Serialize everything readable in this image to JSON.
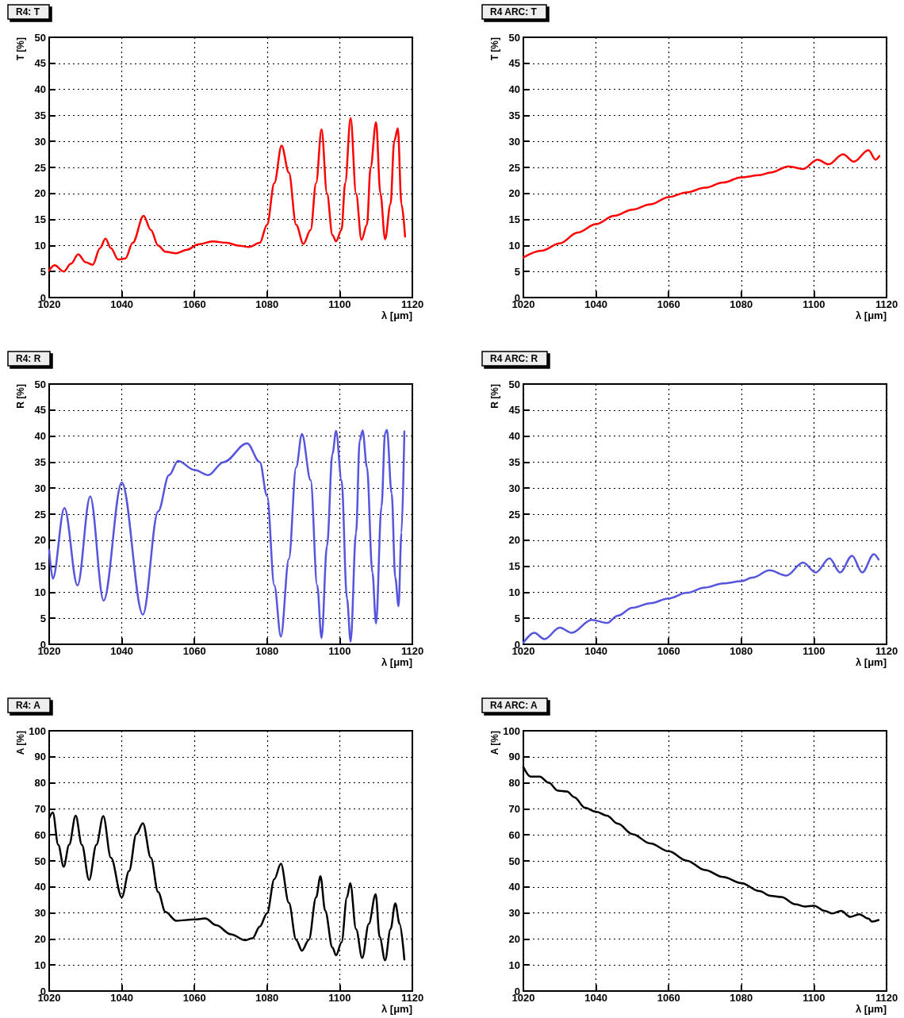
{
  "chart_data": [
    {
      "type": "line",
      "title": "R4: T",
      "xlabel": "λ [μm]",
      "ylabel": "T [%]",
      "xlim": [
        1020,
        1120
      ],
      "xticks": [
        1020,
        1040,
        1060,
        1080,
        1100,
        1120
      ],
      "ylim": [
        0,
        50
      ],
      "yticks": [
        0,
        5,
        10,
        15,
        20,
        25,
        30,
        35,
        40,
        45,
        50
      ],
      "grid": true,
      "line_style": "solid",
      "series": [
        {
          "color": "#ff0000",
          "x": [
            1020,
            1021.5,
            1024,
            1026,
            1028,
            1030,
            1032,
            1034,
            1035.5,
            1037,
            1039,
            1041,
            1043,
            1046,
            1048,
            1050,
            1052,
            1055,
            1058,
            1061,
            1065,
            1069,
            1072,
            1075,
            1078,
            1080,
            1082,
            1084,
            1086,
            1088,
            1090,
            1092,
            1093.5,
            1095,
            1096.5,
            1098,
            1099,
            1100.5,
            1101.5,
            1103,
            1104.5,
            1106,
            1107.5,
            1108.5,
            1110,
            1111.2,
            1112.5,
            1114,
            1115,
            1116,
            1117,
            1118
          ],
          "values": [
            5.2,
            6.2,
            5.0,
            6.5,
            8.3,
            6.8,
            6.3,
            9.5,
            11.3,
            9.5,
            7.3,
            7.5,
            10.5,
            15.7,
            13,
            10,
            8.8,
            8.5,
            9.2,
            10.2,
            10.8,
            10.5,
            10,
            9.7,
            10.5,
            14,
            22,
            29.2,
            24,
            14,
            10.3,
            13,
            22,
            32.3,
            20,
            12,
            10.8,
            13,
            22,
            34.5,
            20,
            11.1,
            14,
            25,
            33.7,
            20,
            11.2,
            18,
            30,
            32.5,
            18,
            11.7
          ]
        }
      ]
    },
    {
      "type": "line",
      "title": "R4 ARC: T",
      "xlabel": "λ [μm]",
      "ylabel": "T [%]",
      "xlim": [
        1020,
        1120
      ],
      "xticks": [
        1020,
        1040,
        1060,
        1080,
        1100,
        1120
      ],
      "ylim": [
        0,
        50
      ],
      "yticks": [
        0,
        5,
        10,
        15,
        20,
        25,
        30,
        35,
        40,
        45,
        50
      ],
      "grid": true,
      "line_style": "solid",
      "series": [
        {
          "color": "#ff0000",
          "x": [
            1020,
            1025,
            1030,
            1035,
            1040,
            1045,
            1050,
            1055,
            1060,
            1065,
            1070,
            1075,
            1080,
            1085,
            1088,
            1093,
            1097,
            1101,
            1104,
            1108,
            1111,
            1115,
            1117,
            1118
          ],
          "values": [
            7.7,
            9,
            10.4,
            12.5,
            14.1,
            15.7,
            16.9,
            17.9,
            19.3,
            20.2,
            21.1,
            22.1,
            23.1,
            23.5,
            24,
            25.2,
            24.7,
            26.5,
            25.6,
            27.5,
            26.1,
            28.3,
            26.5,
            27.2
          ]
        }
      ]
    },
    {
      "type": "line",
      "title": "R4: R",
      "xlabel": "λ [μm]",
      "ylabel": "R [%]",
      "xlim": [
        1020,
        1120
      ],
      "xticks": [
        1020,
        1040,
        1060,
        1080,
        1100,
        1120
      ],
      "ylim": [
        0,
        50
      ],
      "yticks": [
        0,
        5,
        10,
        15,
        20,
        25,
        30,
        35,
        40,
        45,
        50
      ],
      "grid": true,
      "line_style": "solid",
      "series": [
        {
          "color": "#5555dd",
          "x": [
            1020,
            1021,
            1024.2,
            1027.8,
            1031.3,
            1035,
            1040,
            1045.8,
            1050,
            1053,
            1055.5,
            1060,
            1063.8,
            1068,
            1074.5,
            1078,
            1080,
            1082,
            1083.8,
            1086,
            1088,
            1089.6,
            1092,
            1093.8,
            1095,
            1096.5,
            1098,
            1099,
            1100.5,
            1102,
            1103,
            1104.5,
            1105.5,
            1106.3,
            1107.5,
            1109,
            1110,
            1111.5,
            1112.5,
            1113,
            1114.3,
            1115.3,
            1116.2,
            1117,
            1117.8
          ],
          "values": [
            18.1,
            12.6,
            26.2,
            11.3,
            28.4,
            8.4,
            31.1,
            5.7,
            25.5,
            32.5,
            35.2,
            33.5,
            32.5,
            35,
            38.6,
            35,
            28.5,
            11.3,
            1.5,
            16.4,
            34,
            40.4,
            31.5,
            11.3,
            1.2,
            18.9,
            36.6,
            41,
            31.5,
            8.8,
            0.5,
            21.4,
            39.1,
            41.1,
            34,
            13.8,
            4,
            26.5,
            40.6,
            41.2,
            29,
            12.8,
            7.3,
            21.4,
            40.9
          ]
        }
      ]
    },
    {
      "type": "line",
      "title": "R4 ARC: R",
      "xlabel": "λ [μm]",
      "ylabel": "R [%]",
      "xlim": [
        1020,
        1120
      ],
      "xticks": [
        1020,
        1040,
        1060,
        1080,
        1100,
        1120
      ],
      "ylim": [
        0,
        50
      ],
      "yticks": [
        0,
        5,
        10,
        15,
        20,
        25,
        30,
        35,
        40,
        45,
        50
      ],
      "grid": true,
      "line_style": "solid",
      "series": [
        {
          "color": "#5555dd",
          "x": [
            1020,
            1023,
            1025.8,
            1030,
            1033.3,
            1038.8,
            1043,
            1046,
            1050,
            1055,
            1060,
            1065,
            1070,
            1075,
            1080,
            1083,
            1087.8,
            1092.4,
            1097,
            1100.5,
            1104.3,
            1107.2,
            1110.5,
            1113.3,
            1116.5,
            1117.8
          ],
          "values": [
            0.3,
            2.2,
            1,
            3.2,
            2.2,
            4.7,
            4.1,
            5.5,
            7,
            7.9,
            8.8,
            9.9,
            10.9,
            11.7,
            12.1,
            12.8,
            14.2,
            13.2,
            15.7,
            13.8,
            16.5,
            13.8,
            17,
            13.8,
            17.3,
            16.3
          ]
        }
      ]
    },
    {
      "type": "line",
      "title": "R4: A",
      "xlabel": "λ [μm]",
      "ylabel": "A [%]",
      "xlim": [
        1020,
        1120
      ],
      "xticks": [
        1020,
        1040,
        1060,
        1080,
        1100,
        1120
      ],
      "ylim": [
        0,
        100
      ],
      "yticks": [
        0,
        10,
        20,
        30,
        40,
        50,
        60,
        70,
        80,
        90,
        100
      ],
      "grid": true,
      "line_style": "solid",
      "series": [
        {
          "color": "#000000",
          "x": [
            1020,
            1021,
            1022.5,
            1024,
            1025.5,
            1027.3,
            1029,
            1031,
            1033,
            1034.9,
            1037,
            1040,
            1042,
            1044,
            1045.8,
            1048,
            1050,
            1052,
            1055,
            1060,
            1063,
            1066,
            1070,
            1074,
            1076,
            1078,
            1080,
            1082,
            1083.8,
            1086,
            1088,
            1089.6,
            1091.5,
            1093.5,
            1094.7,
            1096,
            1098,
            1099,
            1100.5,
            1102,
            1102.9,
            1104.5,
            1106.2,
            1108,
            1109.9,
            1111,
            1112.5,
            1114,
            1115.3,
            1116.5,
            1117.8
          ],
          "values": [
            66.4,
            68.6,
            56.2,
            47.8,
            56.2,
            67.4,
            56.2,
            42.7,
            56.2,
            67.2,
            51.2,
            36,
            46.1,
            60.3,
            64.5,
            51.2,
            38,
            30.4,
            27,
            27.5,
            27.9,
            25.3,
            21.8,
            19.5,
            20.3,
            24.8,
            29.9,
            43,
            48.9,
            33.9,
            19.7,
            15.5,
            19.7,
            36,
            44.1,
            30.9,
            16.7,
            13.7,
            18.7,
            36,
            41.5,
            23.8,
            12.7,
            25.8,
            37.2,
            20.8,
            11.8,
            23.8,
            33.7,
            25.8,
            12.1
          ]
        }
      ]
    },
    {
      "type": "line",
      "title": "R4 ARC: A",
      "xlabel": "λ [μm]",
      "ylabel": "A [%]",
      "xlim": [
        1020,
        1120
      ],
      "xticks": [
        1020,
        1040,
        1060,
        1080,
        1100,
        1120
      ],
      "ylim": [
        0,
        100
      ],
      "yticks": [
        0,
        10,
        20,
        30,
        40,
        50,
        60,
        70,
        80,
        90,
        100
      ],
      "grid": true,
      "line_style": "solid",
      "series": [
        {
          "color": "#000000",
          "x": [
            1020,
            1022,
            1024.5,
            1027,
            1029.5,
            1032,
            1034,
            1037,
            1040,
            1043,
            1046,
            1050,
            1055,
            1060,
            1065,
            1070,
            1075,
            1080,
            1085,
            1088,
            1091,
            1095,
            1097.5,
            1100,
            1103,
            1105,
            1107.5,
            1110,
            1112.5,
            1115,
            1116,
            1117.8
          ],
          "values": [
            86.1,
            82.4,
            82.4,
            80,
            77,
            76.7,
            74.5,
            70.4,
            68.9,
            67.4,
            64.3,
            60.3,
            56.7,
            53.7,
            50.1,
            46.5,
            43.8,
            41.5,
            38.4,
            36.6,
            36.1,
            33.3,
            32.5,
            32.8,
            30.8,
            29.8,
            30.8,
            28.5,
            29.5,
            27.8,
            26.7,
            27.3
          ]
        }
      ]
    }
  ]
}
